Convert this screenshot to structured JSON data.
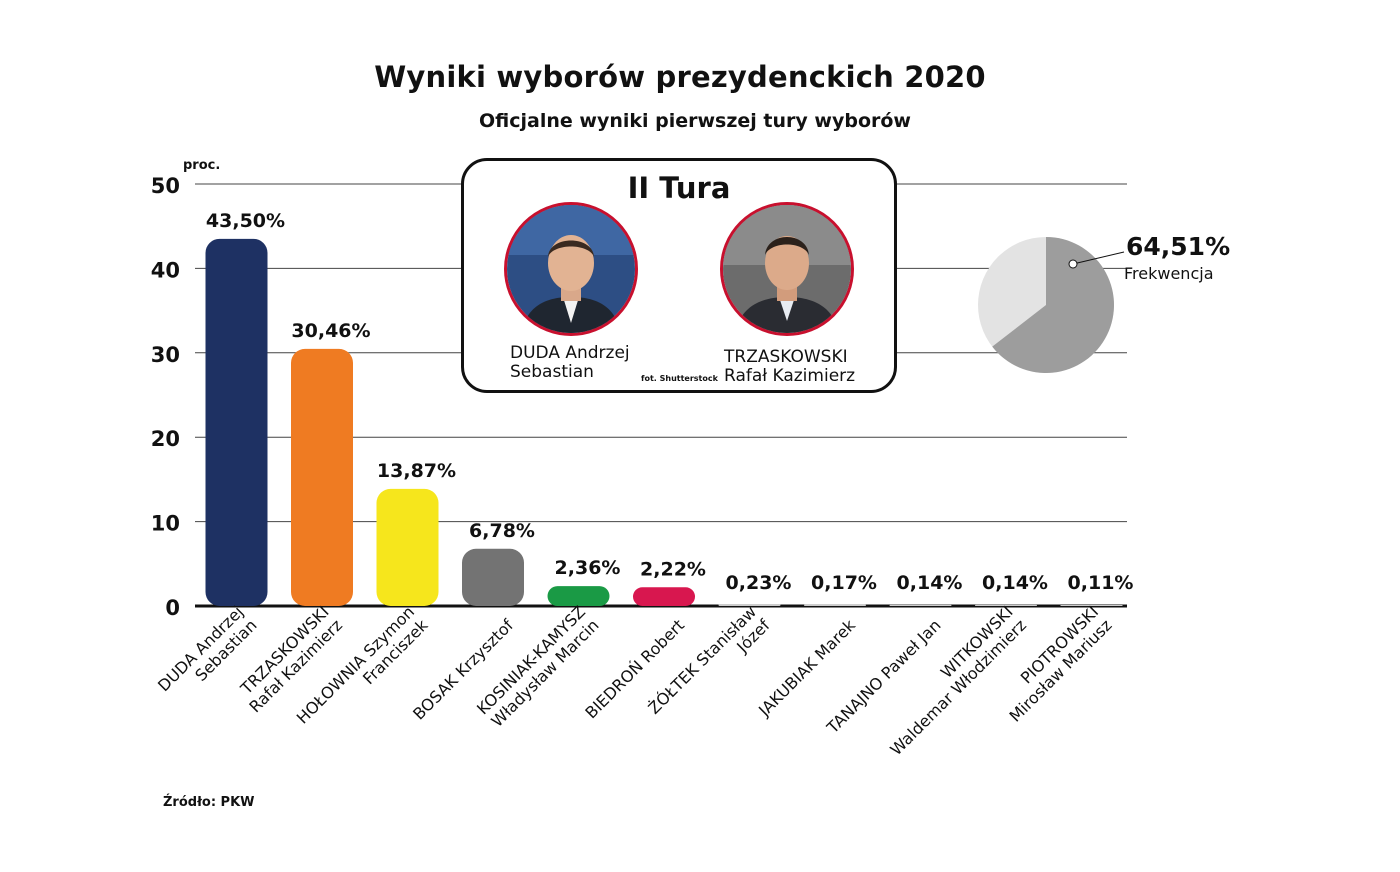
{
  "chart_data": {
    "type": "bar",
    "title": "Wyniki wyborów prezydenckich 2020",
    "subtitle": "Oficjalne wyniki pierwszej tury wyborów",
    "ylabel": "proc.",
    "ylim": [
      0,
      50
    ],
    "yticks": [
      "0",
      "10",
      "20",
      "30",
      "40",
      "50"
    ],
    "grid": true,
    "categories": [
      [
        "DUDA Andrzej",
        "Sebastian"
      ],
      [
        "TRZASKOWSKI",
        "Rafał Kazimierz"
      ],
      [
        "HOŁOWNIA Szymon",
        "Franciszek"
      ],
      [
        "BOSAK Krzysztof"
      ],
      [
        "KOSINIAK-KAMYSZ",
        "Władysław Marcin"
      ],
      [
        "BIEDROŃ Robert"
      ],
      [
        "ŻÓŁTEK Stanisław",
        "Józef"
      ],
      [
        "JAKUBIAK Marek"
      ],
      [
        "TANAJNO Paweł Jan"
      ],
      [
        "WITKOWSKI",
        "Waldemar Włodzimierz"
      ],
      [
        "PIOTROWSKI",
        "Mirosław Mariusz"
      ]
    ],
    "values": [
      43.5,
      30.46,
      13.87,
      6.78,
      2.36,
      2.22,
      0.23,
      0.17,
      0.14,
      0.14,
      0.11
    ],
    "value_labels": [
      "43,50%",
      "30,46%",
      "13,87%",
      "6,78%",
      "2,36%",
      "2,22%",
      "0,23%",
      "0,17%",
      "0,14%",
      "0,14%",
      "0,11%"
    ],
    "colors": [
      "#1e3163",
      "#ef7b22",
      "#f6e61c",
      "#737373",
      "#1a9a45",
      "#d8174f",
      "#cccccc",
      "#cccccc",
      "#cccccc",
      "#cccccc",
      "#cccccc"
    ],
    "turnout": {
      "value": 64.51,
      "value_label": "64,51%",
      "label": "Frekwencja",
      "color": "#9d9d9d",
      "rest_color": "#e3e3e3"
    },
    "source": "Źródło: PKW"
  },
  "runoff": {
    "title": "II Tura",
    "candidate_1": [
      "DUDA Andrzej",
      "Sebastian"
    ],
    "candidate_2": [
      "TRZASKOWSKI",
      "Rafał Kazimierz"
    ],
    "photo_credit": "fot. Shutterstock",
    "ring_color": "#c8102e",
    "photo_icon_1": "duda-photo-icon",
    "photo_icon_2": "trzaskowski-photo-icon"
  }
}
